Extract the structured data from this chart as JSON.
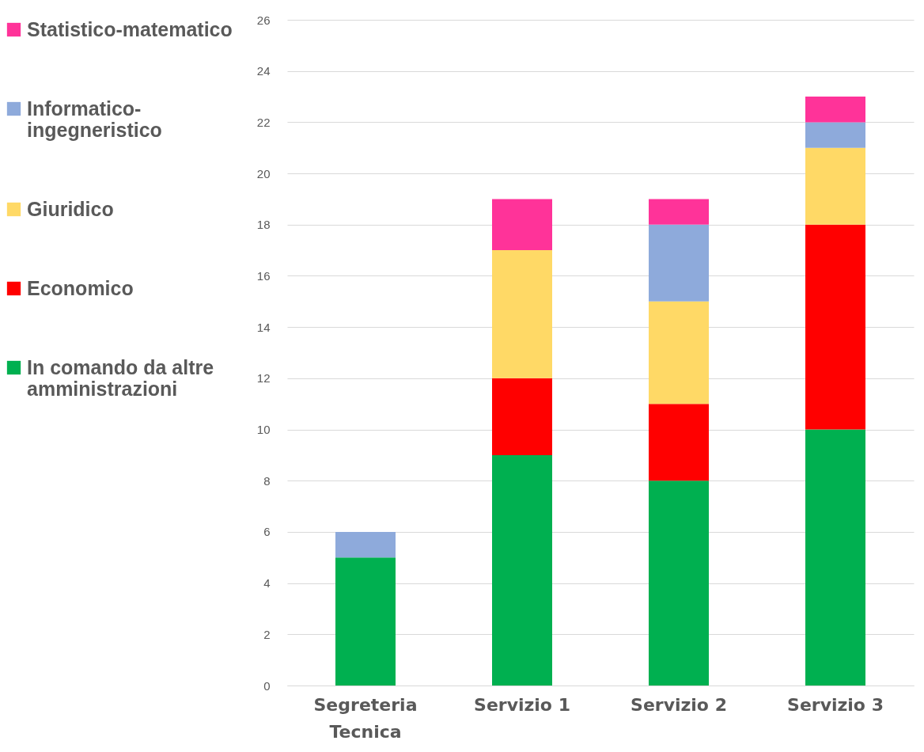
{
  "chart_data": {
    "type": "bar",
    "stacked": true,
    "categories": [
      "Segreteria Tecnica",
      "Servizio 1",
      "Servizio 2",
      "Servizio 3"
    ],
    "series": [
      {
        "name": "In comando da altre amministrazioni",
        "color": "#00b050",
        "values": [
          5,
          9,
          8,
          10
        ]
      },
      {
        "name": "Economico",
        "color": "#ff0000",
        "values": [
          0,
          3,
          3,
          8
        ]
      },
      {
        "name": "Giuridico",
        "color": "#ffd966",
        "values": [
          0,
          5,
          4,
          3
        ]
      },
      {
        "name": "Informatico-ingegneristico",
        "color": "#8eaadb",
        "values": [
          1,
          0,
          3,
          1
        ]
      },
      {
        "name": "Statistico-matematico",
        "color": "#ff3399",
        "values": [
          0,
          2,
          1,
          1
        ]
      }
    ],
    "ylim": [
      0,
      26
    ],
    "yticks": [
      0,
      2,
      4,
      6,
      8,
      10,
      12,
      14,
      16,
      18,
      20,
      22,
      24,
      26
    ],
    "grid": "y",
    "legend": "left"
  }
}
